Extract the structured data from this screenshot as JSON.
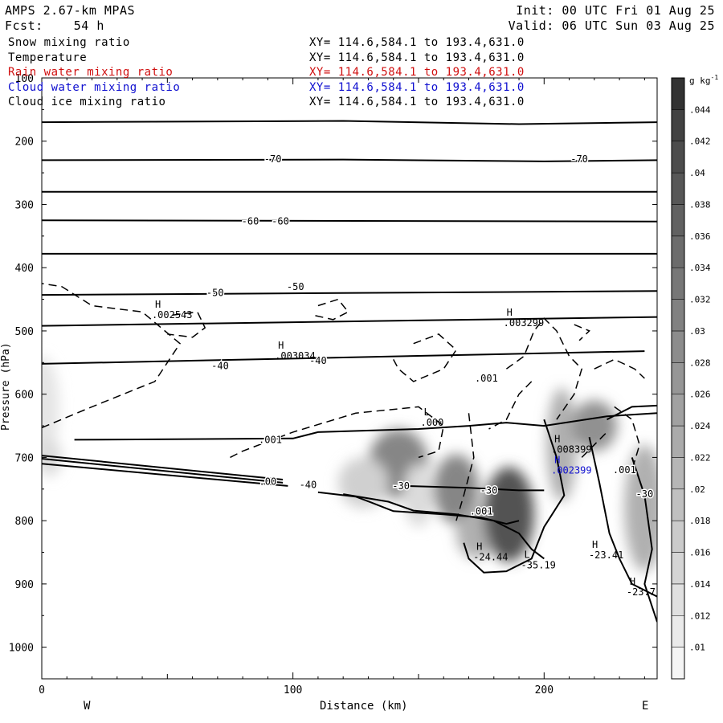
{
  "header": {
    "model": "AMPS 2.67-km MPAS",
    "forecast": "Fcst:    54 h",
    "init": "Init: 00 UTC Fri 01 Aug 25",
    "valid": "Valid: 06 UTC Sun 03 Aug 25"
  },
  "legend": [
    {
      "label": "Snow mixing ratio",
      "xy": "XY= 114.6,584.1 to 193.4,631.0",
      "color": "#000000"
    },
    {
      "label": "Temperature",
      "xy": "XY= 114.6,584.1 to 193.4,631.0",
      "color": "#000000"
    },
    {
      "label": "Rain water mixing ratio",
      "xy": "XY= 114.6,584.1 to 193.4,631.0",
      "color": "#d01010"
    },
    {
      "label": "Cloud water mixing ratio",
      "xy": "XY= 114.6,584.1 to 193.4,631.0",
      "color": "#1010d0"
    },
    {
      "label": "Cloud ice mixing ratio",
      "xy": "XY= 114.6,584.1 to 193.4,631.0",
      "color": "#000000"
    }
  ],
  "chart_data": {
    "type": "heatmap",
    "xlabel": "Distance (km)",
    "ylabel": "Pressure (hPa)",
    "xlim": [
      0,
      245
    ],
    "ylim": [
      100,
      1050
    ],
    "x_ticks": [
      0,
      100,
      200
    ],
    "y_ticks": [
      100,
      200,
      300,
      400,
      500,
      600,
      700,
      800,
      900,
      1000
    ],
    "x_end_labels": {
      "left": "W",
      "right": "E"
    },
    "colorbar": {
      "unit": "g kg",
      "unit_exp": "-1",
      "ticks": [
        ".01",
        ".012",
        ".014",
        ".016",
        ".018",
        ".02",
        ".022",
        ".024",
        ".026",
        ".028",
        ".03",
        ".032",
        ".034",
        ".036",
        ".038",
        ".04",
        ".042",
        ".044"
      ],
      "tick_values": [
        0.01,
        0.012,
        0.014,
        0.016,
        0.018,
        0.02,
        0.022,
        0.024,
        0.026,
        0.028,
        0.03,
        0.032,
        0.034,
        0.036,
        0.038,
        0.04,
        0.042,
        0.044
      ],
      "range": [
        0.009,
        0.046
      ]
    },
    "shaded_blobs": [
      {
        "x": 142,
        "p": 710,
        "sx": 12,
        "sp": 55,
        "value": 0.03
      },
      {
        "x": 128,
        "p": 740,
        "sx": 10,
        "sp": 40,
        "value": 0.016
      },
      {
        "x": 150,
        "p": 760,
        "sx": 6,
        "sp": 50,
        "value": 0.014
      },
      {
        "x": 165,
        "p": 750,
        "sx": 9,
        "sp": 55,
        "value": 0.03
      },
      {
        "x": 173,
        "p": 820,
        "sx": 8,
        "sp": 40,
        "value": 0.022
      },
      {
        "x": 186,
        "p": 790,
        "sx": 10,
        "sp": 75,
        "value": 0.04
      },
      {
        "x": 207,
        "p": 680,
        "sx": 6,
        "sp": 90,
        "value": 0.022
      },
      {
        "x": 220,
        "p": 650,
        "sx": 9,
        "sp": 40,
        "value": 0.028
      },
      {
        "x": 240,
        "p": 780,
        "sx": 8,
        "sp": 100,
        "value": 0.022
      },
      {
        "x": 0,
        "p": 620,
        "sx": 7,
        "sp": 80,
        "value": 0.012
      },
      {
        "x": 3,
        "p": 700,
        "sx": 5,
        "sp": 30,
        "value": 0.014
      }
    ],
    "temperature_contours": [
      {
        "points": [
          [
            0,
            170
          ],
          [
            120,
            168
          ],
          [
            190,
            173
          ],
          [
            245,
            170
          ]
        ]
      },
      {
        "points": [
          [
            0,
            230
          ],
          [
            120,
            229
          ],
          [
            200,
            232
          ],
          [
            245,
            230
          ]
        ]
      },
      {
        "points": [
          [
            0,
            280
          ],
          [
            245,
            280
          ]
        ]
      },
      {
        "points": [
          [
            0,
            325
          ],
          [
            245,
            327
          ]
        ]
      },
      {
        "points": [
          [
            0,
            378
          ],
          [
            245,
            378
          ]
        ]
      },
      {
        "points": [
          [
            0,
            443
          ],
          [
            245,
            437
          ]
        ]
      },
      {
        "points": [
          [
            0,
            492
          ],
          [
            245,
            478
          ]
        ]
      },
      {
        "points": [
          [
            0,
            552
          ],
          [
            240,
            532
          ]
        ]
      },
      {
        "points": [
          [
            13,
            672
          ],
          [
            100,
            670
          ],
          [
            110,
            660
          ],
          [
            150,
            655
          ],
          [
            170,
            650
          ],
          [
            185,
            645
          ],
          [
            200,
            650
          ],
          [
            225,
            635
          ],
          [
            245,
            630
          ]
        ]
      },
      {
        "points": [
          [
            0,
            710
          ],
          [
            98,
            745
          ]
        ]
      },
      {
        "points": [
          [
            0,
            697
          ],
          [
            96,
            735
          ]
        ]
      },
      {
        "points": [
          [
            0,
            702
          ],
          [
            96,
            740
          ]
        ]
      },
      {
        "points": [
          [
            110,
            755
          ],
          [
            125,
            762
          ],
          [
            131,
            771
          ],
          [
            140,
            785
          ],
          [
            160,
            790
          ],
          [
            175,
            795
          ],
          [
            185,
            805
          ],
          [
            190,
            800
          ]
        ]
      },
      {
        "points": [
          [
            120,
            758
          ],
          [
            138,
            770
          ],
          [
            148,
            784
          ],
          [
            165,
            790
          ],
          [
            180,
            800
          ],
          [
            190,
            820
          ],
          [
            195,
            845
          ],
          [
            200,
            860
          ]
        ]
      },
      {
        "points": [
          [
            145,
            745
          ],
          [
            170,
            748
          ],
          [
            190,
            752
          ],
          [
            200,
            752
          ]
        ]
      },
      {
        "points": [
          [
            200,
            640
          ],
          [
            205,
            700
          ],
          [
            208,
            760
          ],
          [
            200,
            810
          ],
          [
            195,
            860
          ],
          [
            185,
            880
          ],
          [
            176,
            882
          ],
          [
            170,
            860
          ],
          [
            168,
            835
          ]
        ]
      },
      {
        "points": [
          [
            218,
            668
          ],
          [
            222,
            740
          ],
          [
            226,
            820
          ],
          [
            230,
            860
          ],
          [
            235,
            900
          ],
          [
            245,
            920
          ]
        ]
      },
      {
        "points": [
          [
            225,
            640
          ],
          [
            235,
            620
          ],
          [
            245,
            618
          ]
        ]
      },
      {
        "points": [
          [
            235,
            700
          ],
          [
            240,
            760
          ],
          [
            243,
            845
          ],
          [
            240,
            900
          ],
          [
            245,
            960
          ]
        ]
      }
    ],
    "snow_contours": [
      {
        "points": [
          [
            0,
            653
          ],
          [
            20,
            620
          ],
          [
            45,
            580
          ],
          [
            55,
            520
          ],
          [
            40,
            470
          ],
          [
            20,
            460
          ],
          [
            8,
            430
          ],
          [
            0,
            425
          ]
        ]
      },
      {
        "points": [
          [
            52,
            475
          ],
          [
            62,
            470
          ],
          [
            65,
            495
          ],
          [
            60,
            510
          ],
          [
            50,
            505
          ]
        ]
      },
      {
        "points": [
          [
            110,
            460
          ],
          [
            118,
            450
          ],
          [
            122,
            470
          ],
          [
            116,
            482
          ],
          [
            108,
            475
          ]
        ]
      },
      {
        "points": [
          [
            75,
            700
          ],
          [
            80,
            690
          ],
          [
            100,
            660
          ],
          [
            125,
            630
          ],
          [
            150,
            620
          ],
          [
            160,
            650
          ],
          [
            158,
            690
          ],
          [
            150,
            700
          ]
        ]
      },
      {
        "points": [
          [
            148,
            520
          ],
          [
            158,
            505
          ],
          [
            165,
            530
          ],
          [
            160,
            560
          ],
          [
            148,
            580
          ],
          [
            142,
            560
          ],
          [
            140,
            545
          ]
        ]
      },
      {
        "points": [
          [
            185,
            560
          ],
          [
            192,
            540
          ],
          [
            196,
            500
          ],
          [
            200,
            480
          ],
          [
            205,
            500
          ],
          [
            210,
            540
          ],
          [
            215,
            560
          ],
          [
            212,
            600
          ],
          [
            205,
            640
          ]
        ]
      },
      {
        "points": [
          [
            195,
            580
          ],
          [
            190,
            600
          ],
          [
            185,
            640
          ],
          [
            178,
            655
          ]
        ]
      },
      {
        "points": [
          [
            212,
            490
          ],
          [
            218,
            500
          ],
          [
            214,
            515
          ]
        ]
      },
      {
        "points": [
          [
            220,
            560
          ],
          [
            228,
            545
          ],
          [
            236,
            560
          ],
          [
            240,
            575
          ]
        ]
      },
      {
        "points": [
          [
            228,
            620
          ],
          [
            235,
            640
          ],
          [
            238,
            680
          ],
          [
            235,
            720
          ]
        ]
      },
      {
        "points": [
          [
            215,
            700
          ],
          [
            220,
            680
          ],
          [
            225,
            660
          ]
        ]
      },
      {
        "points": [
          [
            170,
            630
          ],
          [
            172,
            700
          ],
          [
            168,
            760
          ],
          [
            165,
            800
          ]
        ]
      }
    ],
    "contour_labels": [
      {
        "x": 92,
        "p": 228,
        "text": "-70"
      },
      {
        "x": 214,
        "p": 228,
        "text": "-70"
      },
      {
        "x": 83,
        "p": 327,
        "text": "-60"
      },
      {
        "x": 95,
        "p": 327,
        "text": "-60"
      },
      {
        "x": 69,
        "p": 440,
        "text": "-50"
      },
      {
        "x": 101,
        "p": 430,
        "text": "-50"
      },
      {
        "x": 71,
        "p": 555,
        "text": "-40"
      },
      {
        "x": 110,
        "p": 547,
        "text": "-40"
      },
      {
        "x": 106,
        "p": 743,
        "text": "-40"
      },
      {
        "x": 143,
        "p": 745,
        "text": "-30"
      },
      {
        "x": 178,
        "p": 752,
        "text": "-30"
      },
      {
        "x": 240,
        "p": 758,
        "text": "-30"
      },
      {
        "x": 91,
        "p": 672,
        "text": ".001"
      },
      {
        "x": 90,
        "p": 738,
        "text": ".00"
      },
      {
        "x": 177,
        "p": 575,
        "text": ".001"
      },
      {
        "x": 175,
        "p": 785,
        "text": ".001"
      },
      {
        "x": 232,
        "p": 720,
        "text": ".001"
      }
    ],
    "extrema": [
      {
        "x": 47,
        "p": 472,
        "mark": "H",
        "text": ".002543",
        "color": "#000000"
      },
      {
        "x": 187,
        "p": 485,
        "mark": "H",
        "text": ".003299",
        "color": "#000000"
      },
      {
        "x": 96,
        "p": 537,
        "mark": "H",
        "text": ".003034",
        "color": "#000000"
      },
      {
        "x": 154,
        "p": 642,
        "mark": "L",
        "text": ".000",
        "color": "#000000"
      },
      {
        "x": 206,
        "p": 685,
        "mark": "H",
        "text": ".008399",
        "color": "#000000"
      },
      {
        "x": 206,
        "p": 718,
        "mark": "H",
        "text": ".002399",
        "color": "#1010d0"
      },
      {
        "x": 175,
        "p": 855,
        "mark": "H",
        "text": "-24.44",
        "color": "#000000"
      },
      {
        "x": 194,
        "p": 868,
        "mark": "L",
        "text": "-35.19",
        "color": "#000000"
      },
      {
        "x": 221,
        "p": 852,
        "mark": "H",
        "text": "-23.41",
        "color": "#000000"
      },
      {
        "x": 236,
        "p": 910,
        "mark": "H",
        "text": "-23.7",
        "color": "#000000"
      }
    ]
  }
}
